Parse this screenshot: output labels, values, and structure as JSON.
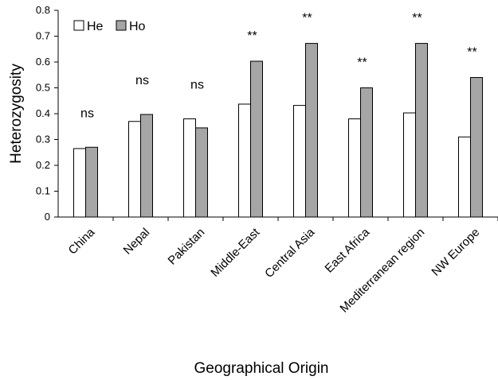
{
  "chart_data": {
    "type": "bar",
    "title": "",
    "xlabel": "Geographical Origin",
    "ylabel": "Heterozygosity",
    "ylim": [
      0,
      0.8
    ],
    "yticks": [
      "0",
      "0.1",
      "0.2",
      "0.3",
      "0.4",
      "0.5",
      "0.6",
      "0.7",
      "0.8"
    ],
    "categories": [
      "China",
      "Nepal",
      "Pakistan",
      "Middle-East",
      "Central Asia",
      "East Africa",
      "Mediterranean region",
      "NW Europe"
    ],
    "series": [
      {
        "name": "He",
        "color": "#ffffff",
        "values": [
          0.265,
          0.37,
          0.38,
          0.437,
          0.432,
          0.38,
          0.403,
          0.31
        ]
      },
      {
        "name": "Ho",
        "color": "#a6a6a6",
        "values": [
          0.27,
          0.397,
          0.345,
          0.603,
          0.672,
          0.5,
          0.672,
          0.54
        ]
      }
    ],
    "significance": [
      "ns",
      "ns",
      "ns",
      "**",
      "**",
      "**",
      "**",
      "**"
    ],
    "legend_position": "top-left",
    "grid": false
  }
}
